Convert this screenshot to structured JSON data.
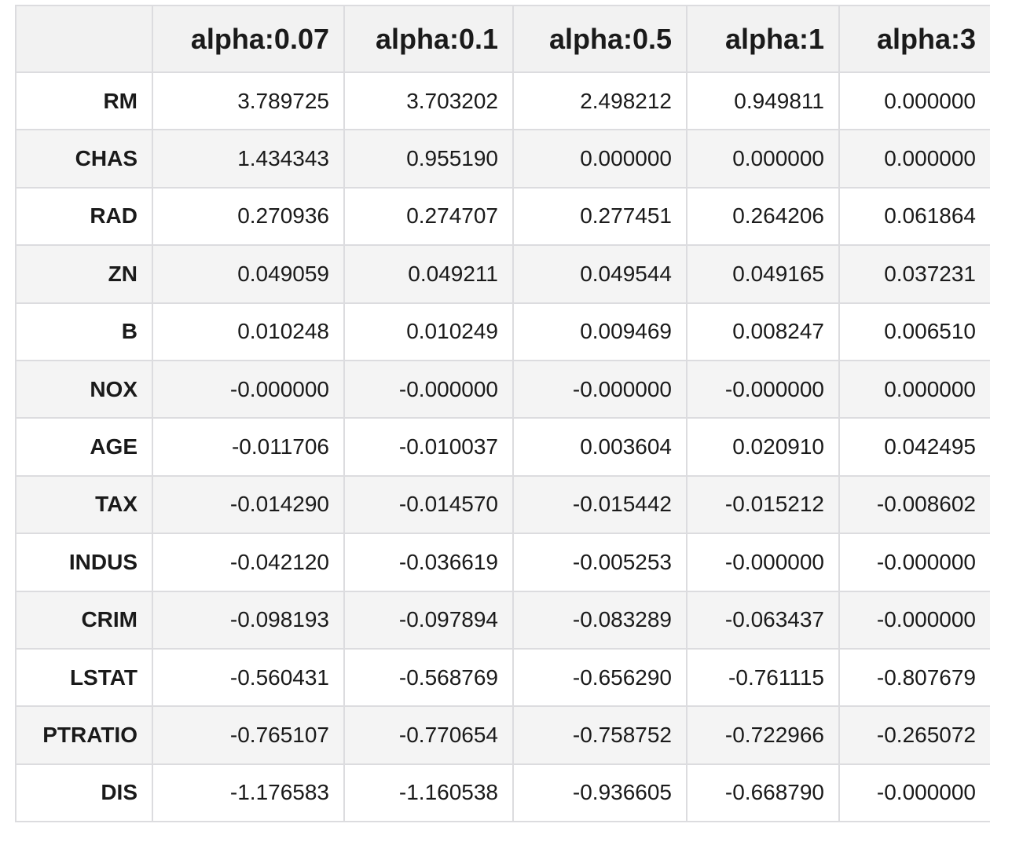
{
  "table": {
    "index_header": "",
    "columns": [
      "alpha:0.07",
      "alpha:0.1",
      "alpha:0.5",
      "alpha:1",
      "alpha:3"
    ],
    "rows": [
      {
        "label": "RM",
        "values": [
          "3.789725",
          "3.703202",
          "2.498212",
          "0.949811",
          "0.000000"
        ]
      },
      {
        "label": "CHAS",
        "values": [
          "1.434343",
          "0.955190",
          "0.000000",
          "0.000000",
          "0.000000"
        ]
      },
      {
        "label": "RAD",
        "values": [
          "0.270936",
          "0.274707",
          "0.277451",
          "0.264206",
          "0.061864"
        ]
      },
      {
        "label": "ZN",
        "values": [
          "0.049059",
          "0.049211",
          "0.049544",
          "0.049165",
          "0.037231"
        ]
      },
      {
        "label": "B",
        "values": [
          "0.010248",
          "0.010249",
          "0.009469",
          "0.008247",
          "0.006510"
        ]
      },
      {
        "label": "NOX",
        "values": [
          "-0.000000",
          "-0.000000",
          "-0.000000",
          "-0.000000",
          "0.000000"
        ]
      },
      {
        "label": "AGE",
        "values": [
          "-0.011706",
          "-0.010037",
          "0.003604",
          "0.020910",
          "0.042495"
        ]
      },
      {
        "label": "TAX",
        "values": [
          "-0.014290",
          "-0.014570",
          "-0.015442",
          "-0.015212",
          "-0.008602"
        ]
      },
      {
        "label": "INDUS",
        "values": [
          "-0.042120",
          "-0.036619",
          "-0.005253",
          "-0.000000",
          "-0.000000"
        ]
      },
      {
        "label": "CRIM",
        "values": [
          "-0.098193",
          "-0.097894",
          "-0.083289",
          "-0.063437",
          "-0.000000"
        ]
      },
      {
        "label": "LSTAT",
        "values": [
          "-0.560431",
          "-0.568769",
          "-0.656290",
          "-0.761115",
          "-0.807679"
        ]
      },
      {
        "label": "PTRATIO",
        "values": [
          "-0.765107",
          "-0.770654",
          "-0.758752",
          "-0.722966",
          "-0.265072"
        ]
      },
      {
        "label": "DIS",
        "values": [
          "-1.176583",
          "-1.160538",
          "-0.936605",
          "-0.668790",
          "-0.000000"
        ]
      }
    ]
  }
}
